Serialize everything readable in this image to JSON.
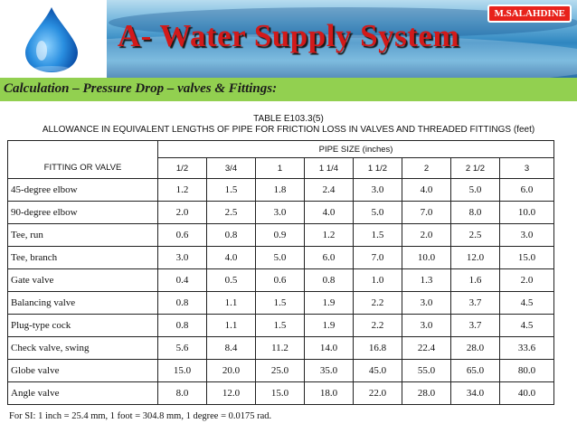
{
  "header": {
    "title": "A- Water Supply System",
    "author_badge": "M.SALAHDINE",
    "colors": {
      "title": "#d21a1a",
      "badge": "#e8221b",
      "subtitle_bar": "#92d050"
    }
  },
  "subtitle": "Calculation – Pressure Drop – valves & Fittings:",
  "table": {
    "caption_line1": "TABLE E103.3(5)",
    "caption_line2": "ALLOWANCE IN EQUIVALENT LENGTHS OF PIPE FOR FRICTION LOSS IN VALVES AND THREADED FITTINGS (feet)",
    "fitting_header": "FITTING OR VALVE",
    "pipe_size_header": "PIPE SIZE (inches)",
    "sizes": [
      "1/2",
      "3/4",
      "1",
      "1 1/4",
      "1 1/2",
      "2",
      "2 1/2",
      "3"
    ],
    "rows": [
      {
        "name": "45-degree elbow",
        "values": [
          "1.2",
          "1.5",
          "1.8",
          "2.4",
          "3.0",
          "4.0",
          "5.0",
          "6.0"
        ]
      },
      {
        "name": "90-degree elbow",
        "values": [
          "2.0",
          "2.5",
          "3.0",
          "4.0",
          "5.0",
          "7.0",
          "8.0",
          "10.0"
        ]
      },
      {
        "name": "Tee, run",
        "values": [
          "0.6",
          "0.8",
          "0.9",
          "1.2",
          "1.5",
          "2.0",
          "2.5",
          "3.0"
        ]
      },
      {
        "name": "Tee, branch",
        "values": [
          "3.0",
          "4.0",
          "5.0",
          "6.0",
          "7.0",
          "10.0",
          "12.0",
          "15.0"
        ]
      },
      {
        "name": "Gate valve",
        "values": [
          "0.4",
          "0.5",
          "0.6",
          "0.8",
          "1.0",
          "1.3",
          "1.6",
          "2.0"
        ]
      },
      {
        "name": "Balancing valve",
        "values": [
          "0.8",
          "1.1",
          "1.5",
          "1.9",
          "2.2",
          "3.0",
          "3.7",
          "4.5"
        ]
      },
      {
        "name": "Plug-type cock",
        "values": [
          "0.8",
          "1.1",
          "1.5",
          "1.9",
          "2.2",
          "3.0",
          "3.7",
          "4.5"
        ]
      },
      {
        "name": "Check valve, swing",
        "values": [
          "5.6",
          "8.4",
          "11.2",
          "14.0",
          "16.8",
          "22.4",
          "28.0",
          "33.6"
        ]
      },
      {
        "name": "Globe valve",
        "values": [
          "15.0",
          "20.0",
          "25.0",
          "35.0",
          "45.0",
          "55.0",
          "65.0",
          "80.0"
        ]
      },
      {
        "name": "Angle valve",
        "values": [
          "8.0",
          "12.0",
          "15.0",
          "18.0",
          "22.0",
          "28.0",
          "34.0",
          "40.0"
        ]
      }
    ]
  },
  "footnote": "For SI: 1 inch = 25.4 mm, 1 foot = 304.8 mm, 1 degree = 0.0175 rad."
}
